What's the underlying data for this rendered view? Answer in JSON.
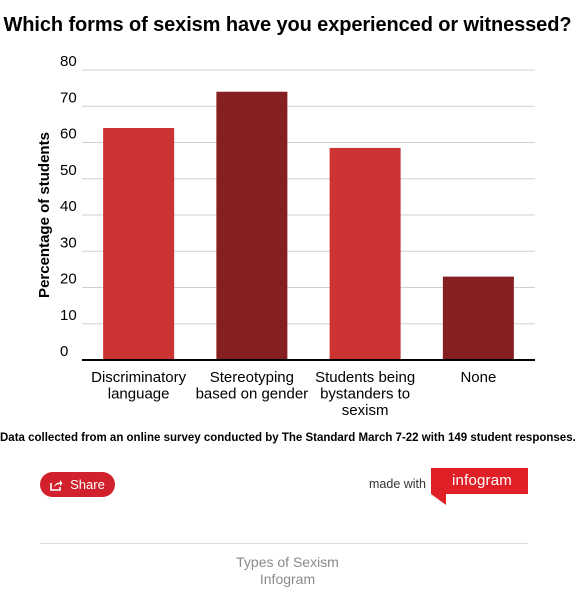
{
  "chart_data": {
    "type": "bar",
    "title": "Which forms of sexism have you experienced or witnessed?",
    "ylabel": "Percentage of students",
    "xlabel": "",
    "ylim": [
      0,
      80
    ],
    "yticks": [
      "0",
      "10",
      "20",
      "30",
      "40",
      "50",
      "60",
      "70",
      "80"
    ],
    "grid": true,
    "categories": [
      [
        "Discriminatory",
        "language"
      ],
      [
        "Stereotyping",
        "based on gender"
      ],
      [
        "Students being",
        "bystanders to",
        "sexism"
      ],
      [
        "None"
      ]
    ],
    "values": [
      64,
      74,
      58.5,
      23
    ],
    "colors": [
      "#cc3333",
      "#862020",
      "#cc3333",
      "#862020"
    ]
  },
  "note": "Data collected from an online survey conducted by The Standard March 7-22 with 149 student responses.",
  "share": {
    "label": "Share",
    "icon": "share-icon",
    "color": "#d0212d"
  },
  "branding": {
    "made_with": "made with",
    "logo_text": "infogram",
    "logo_color": "#e01f27"
  },
  "footer": {
    "title": "Types of Sexism",
    "subtitle": "Infogram"
  }
}
